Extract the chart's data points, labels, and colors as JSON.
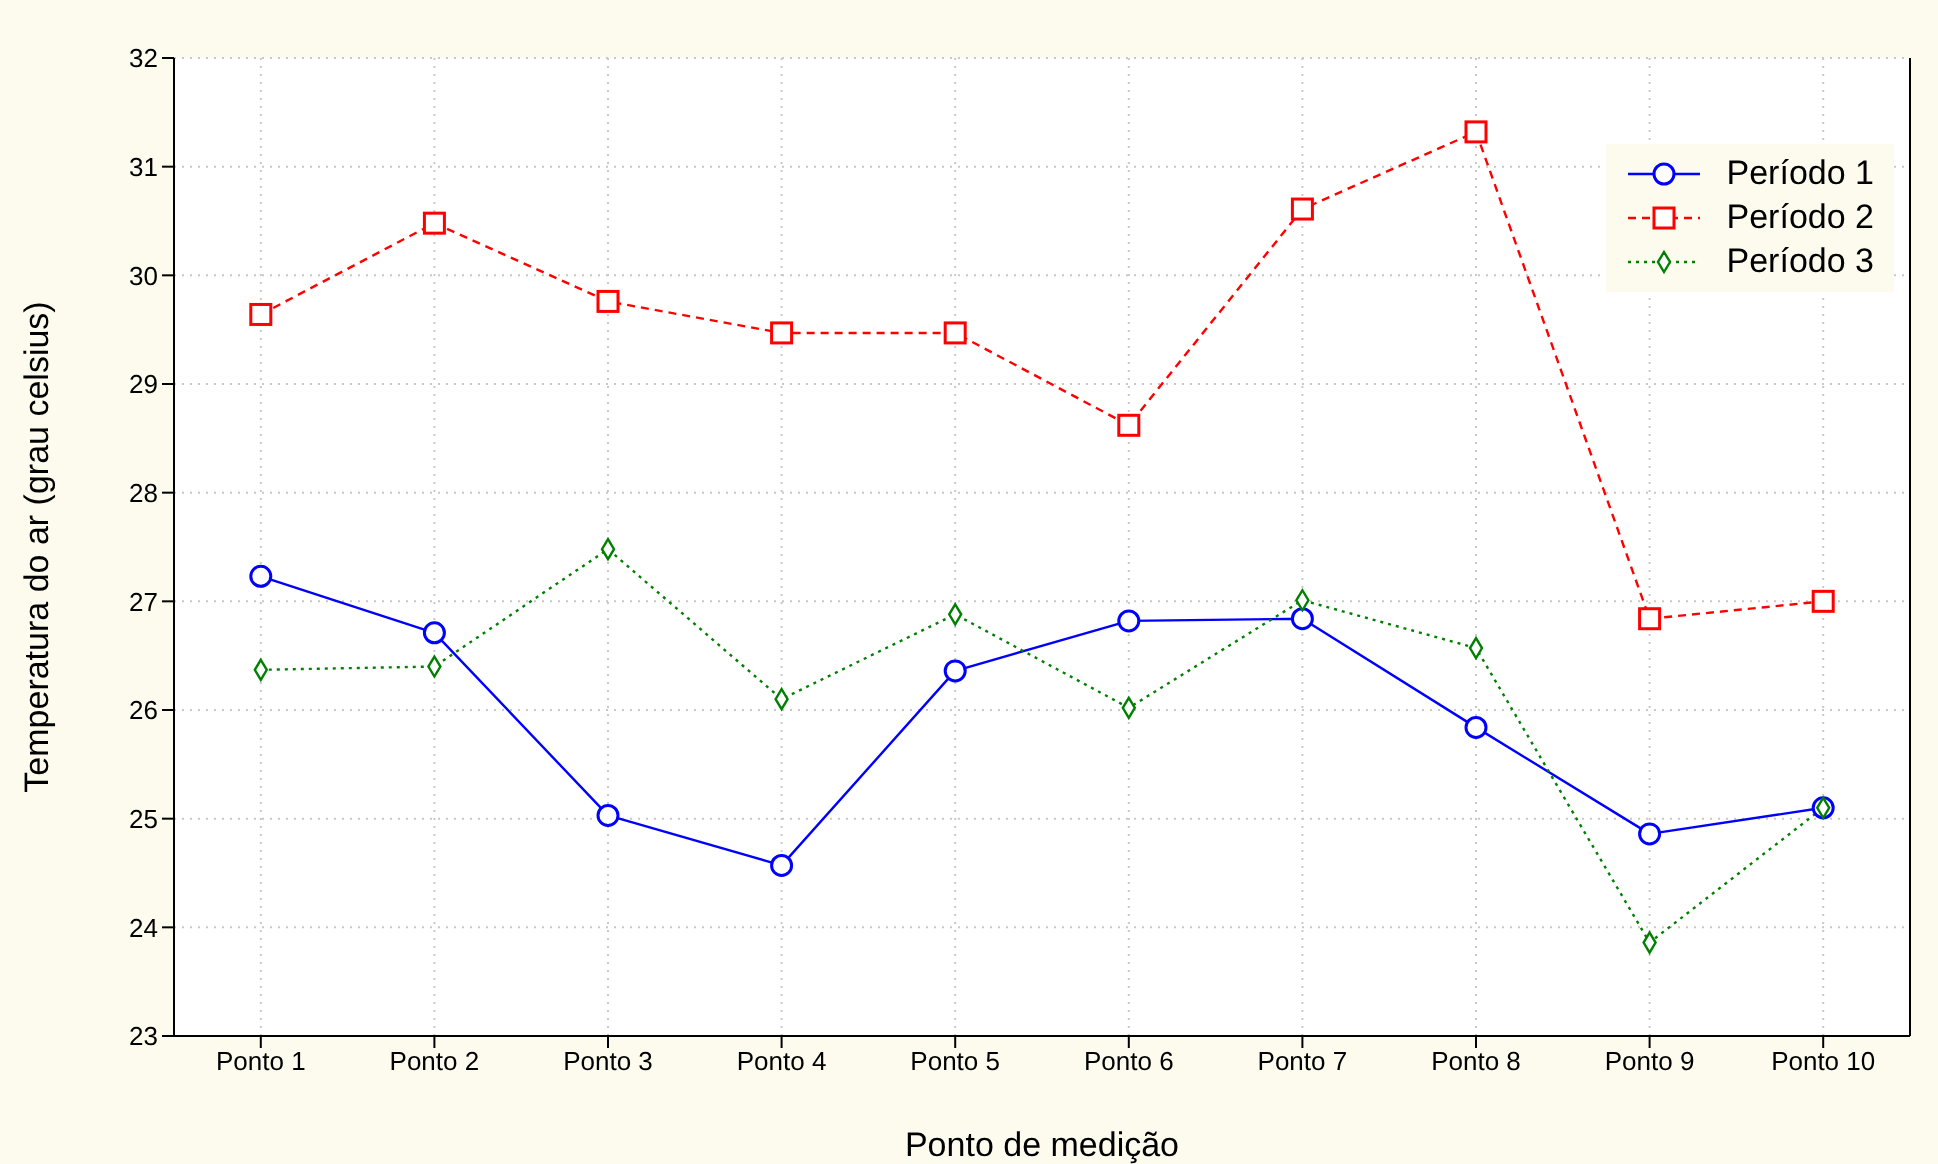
{
  "chart_data": {
    "type": "line",
    "xlabel": "Ponto de medição",
    "ylabel": "Temperatura do ar (grau celsius)",
    "categories": [
      "Ponto 1",
      "Ponto 2",
      "Ponto 3",
      "Ponto 4",
      "Ponto 5",
      "Ponto 6",
      "Ponto 7",
      "Ponto 8",
      "Ponto 9",
      "Ponto 10"
    ],
    "series": [
      {
        "name": "Período 1",
        "color": "#0000ff",
        "marker": "circle",
        "line_style": "solid",
        "values": [
          27.23,
          26.71,
          25.03,
          24.57,
          26.36,
          26.82,
          26.84,
          25.84,
          24.86,
          25.1
        ]
      },
      {
        "name": "Período 2",
        "color": "#ff0000",
        "marker": "square",
        "line_style": "dashed",
        "values": [
          29.64,
          30.48,
          29.76,
          29.47,
          29.47,
          28.62,
          30.61,
          31.32,
          26.84,
          27.0
        ]
      },
      {
        "name": "Período 3",
        "color": "#008000",
        "marker": "diamond",
        "line_style": "dotted",
        "values": [
          26.37,
          26.4,
          27.48,
          26.1,
          26.88,
          26.02,
          27.01,
          26.57,
          23.86,
          25.1
        ]
      }
    ],
    "ylim": [
      23,
      32
    ],
    "yticks": [
      23,
      24,
      25,
      26,
      27,
      28,
      29,
      30,
      31,
      32
    ],
    "grid": true,
    "legend": "top right"
  }
}
